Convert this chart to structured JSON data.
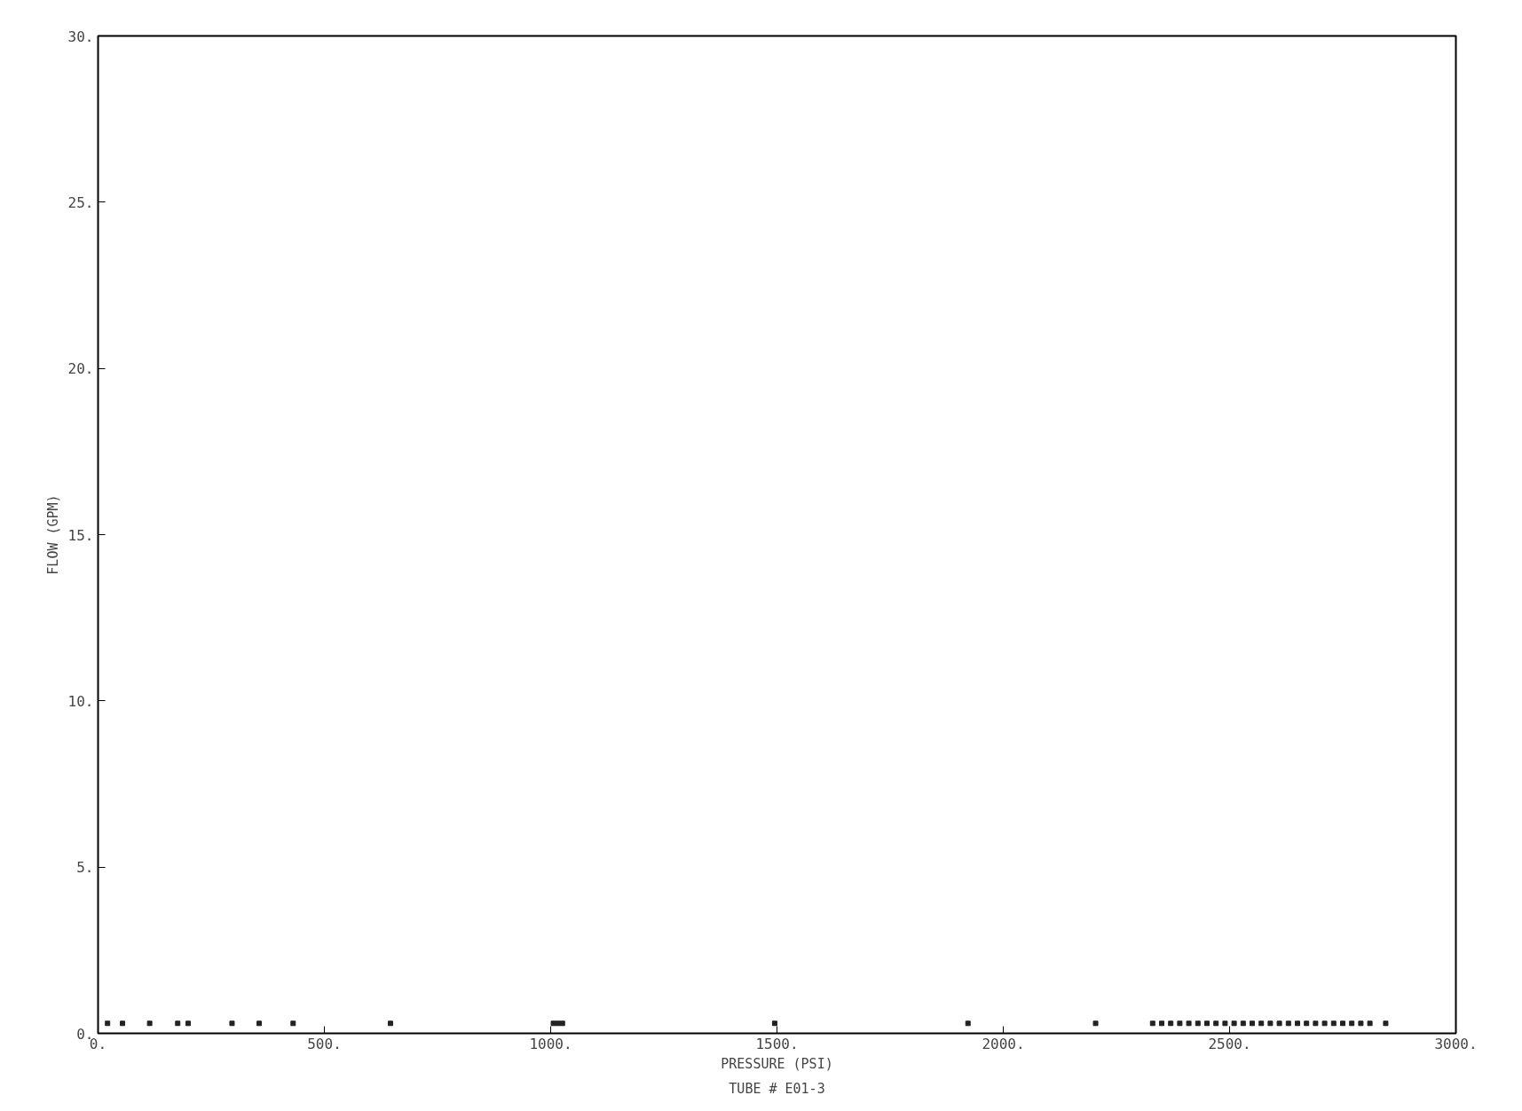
{
  "chart_data": {
    "type": "scatter",
    "xlabel": "PRESSURE (PSI)",
    "ylabel": "FLOW (GPM)",
    "annotations": [
      "TUBE # E01-3"
    ],
    "x": [
      21,
      54,
      114,
      176,
      199,
      296,
      356,
      431,
      646,
      1006,
      1016,
      1026,
      1495,
      1922,
      2204,
      2330,
      2350,
      2370,
      2390,
      2410,
      2430,
      2450,
      2470,
      2490,
      2510,
      2530,
      2550,
      2570,
      2590,
      2610,
      2630,
      2650,
      2670,
      2690,
      2710,
      2730,
      2750,
      2770,
      2790,
      2810,
      2845
    ],
    "values": [
      0.3,
      0.3,
      0.3,
      0.3,
      0.3,
      0.3,
      0.3,
      0.3,
      0.3,
      0.3,
      0.3,
      0.3,
      0.3,
      0.3,
      0.3,
      0.3,
      0.3,
      0.3,
      0.3,
      0.3,
      0.3,
      0.3,
      0.3,
      0.3,
      0.3,
      0.3,
      0.3,
      0.3,
      0.3,
      0.3,
      0.3,
      0.3,
      0.3,
      0.3,
      0.3,
      0.3,
      0.3,
      0.3,
      0.3,
      0.3,
      0.3
    ],
    "color": "#222222",
    "marker": "square",
    "xlim": [
      0,
      3000
    ],
    "ylim": [
      0,
      30
    ],
    "xticks": [
      {
        "value": 0,
        "label": "0."
      },
      {
        "value": 500,
        "label": "500."
      },
      {
        "value": 1000,
        "label": "1000."
      },
      {
        "value": 1500,
        "label": "1500."
      },
      {
        "value": 2000,
        "label": "2000."
      },
      {
        "value": 2500,
        "label": "2500."
      },
      {
        "value": 3000,
        "label": "3000."
      }
    ],
    "yticks": [
      {
        "value": 0,
        "label": "0."
      },
      {
        "value": 5,
        "label": "5."
      },
      {
        "value": 10,
        "label": "10."
      },
      {
        "value": 15,
        "label": "15."
      },
      {
        "value": 20,
        "label": "20."
      },
      {
        "value": 25,
        "label": "25."
      },
      {
        "value": 30,
        "label": "30."
      }
    ],
    "grid": false
  }
}
